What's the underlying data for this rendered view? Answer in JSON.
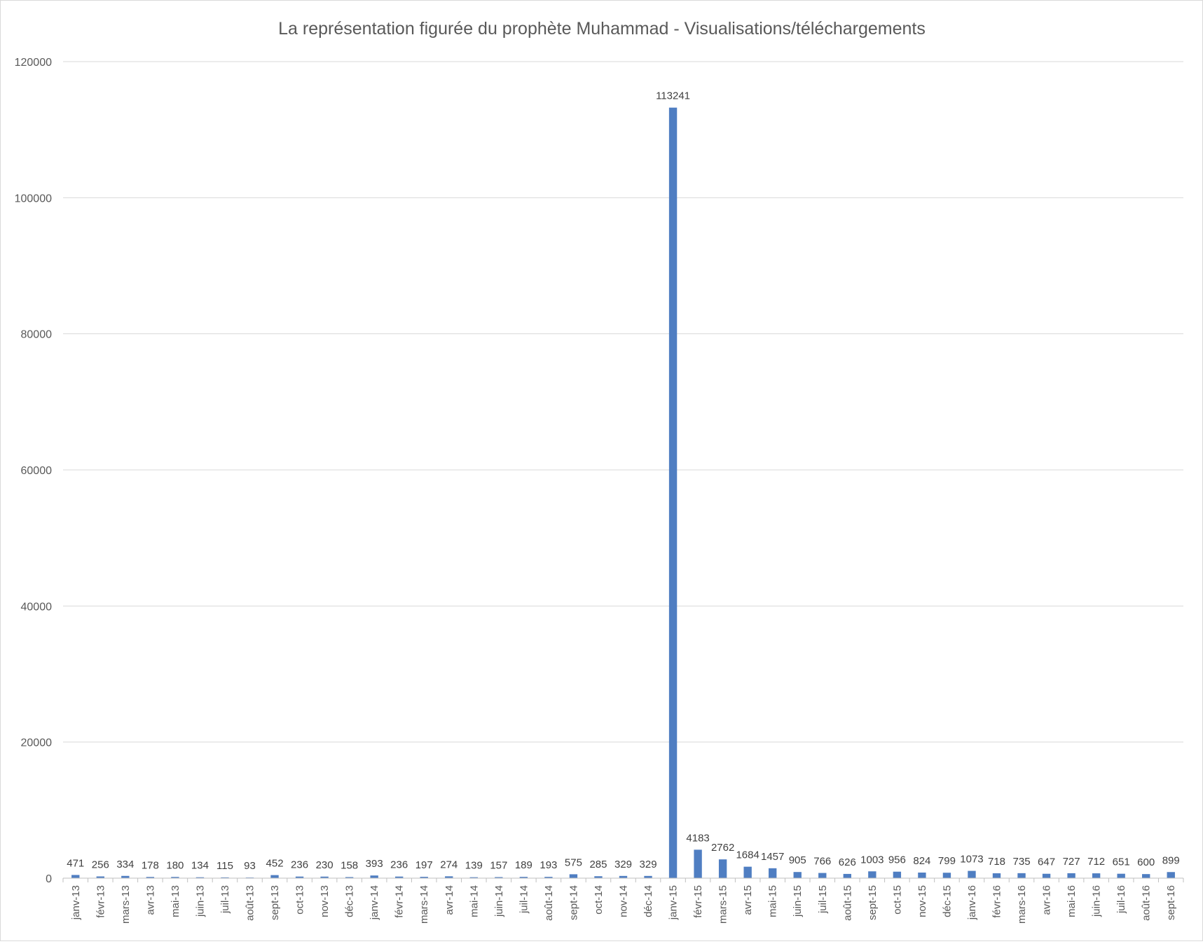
{
  "chart_data": {
    "type": "bar",
    "title": "La représentation figurée du prophète Muhammad - Visualisations/téléchargements",
    "xlabel": "",
    "ylabel": "",
    "ylim": [
      0,
      120000
    ],
    "yticks": [
      "0",
      "20000",
      "40000",
      "60000",
      "80000",
      "100000",
      "120000"
    ],
    "grid": true,
    "legend": "none",
    "bar_color": "#4F7EC2",
    "categories": [
      "janv-13",
      "févr-13",
      "mars-13",
      "avr-13",
      "mai-13",
      "juin-13",
      "juil-13",
      "août-13",
      "sept-13",
      "oct-13",
      "nov-13",
      "déc-13",
      "janv-14",
      "févr-14",
      "mars-14",
      "avr-14",
      "mai-14",
      "juin-14",
      "juil-14",
      "août-14",
      "sept-14",
      "oct-14",
      "nov-14",
      "déc-14",
      "janv-15",
      "févr-15",
      "mars-15",
      "avr-15",
      "mai-15",
      "juin-15",
      "juil-15",
      "août-15",
      "sept-15",
      "oct-15",
      "nov-15",
      "déc-15",
      "janv-16",
      "févr-16",
      "mars-16",
      "avr-16",
      "mai-16",
      "juin-16",
      "juil-16",
      "août-16",
      "sept-16"
    ],
    "values": [
      471,
      256,
      334,
      178,
      180,
      134,
      115,
      93,
      452,
      236,
      230,
      158,
      393,
      236,
      197,
      274,
      139,
      157,
      189,
      193,
      575,
      285,
      329,
      329,
      113241,
      4183,
      2762,
      1684,
      1457,
      905,
      766,
      626,
      1003,
      956,
      824,
      799,
      1073,
      718,
      735,
      647,
      727,
      712,
      651,
      600,
      899
    ]
  }
}
